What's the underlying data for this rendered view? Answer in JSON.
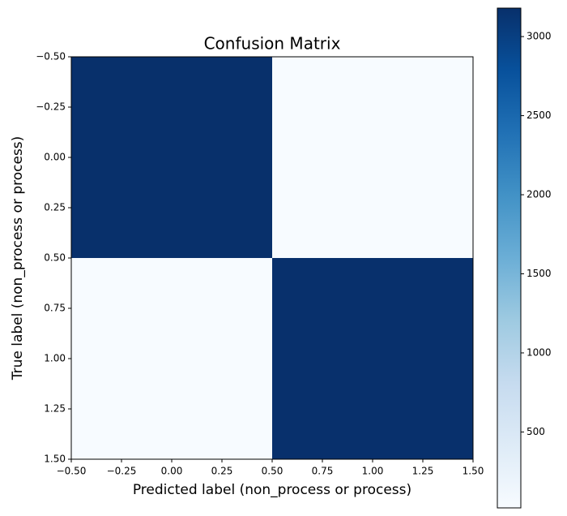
{
  "chart_data": {
    "type": "heatmap",
    "title": "Confusion Matrix",
    "x_label": "Predicted label (non_process or process)",
    "y_label": "True label (non_process or process)",
    "z": [
      [
        3180,
        20
      ],
      [
        25,
        3175
      ]
    ],
    "colormap": "Blues",
    "xlim": [
      -0.5,
      1.5
    ],
    "xticks": [
      {
        "value": -0.5,
        "label": "−0.50"
      },
      {
        "value": -0.25,
        "label": "−0.25"
      },
      {
        "value": 0,
        "label": "0.00"
      },
      {
        "value": 0.25,
        "label": "0.25"
      },
      {
        "value": 0.5,
        "label": "0.50"
      },
      {
        "value": 0.75,
        "label": "0.75"
      },
      {
        "value": 1,
        "label": "1.00"
      },
      {
        "value": 1.25,
        "label": "1.25"
      },
      {
        "value": 1.5,
        "label": "1.50"
      }
    ],
    "ylim": [
      1.5,
      -0.5
    ],
    "yticks": [
      {
        "value": -0.5,
        "label": "−0.50"
      },
      {
        "value": -0.25,
        "label": "−0.25"
      },
      {
        "value": 0,
        "label": "0.00"
      },
      {
        "value": 0.25,
        "label": "0.25"
      },
      {
        "value": 0.5,
        "label": "0.50"
      },
      {
        "value": 0.75,
        "label": "0.75"
      },
      {
        "value": 1,
        "label": "1.00"
      },
      {
        "value": 1.25,
        "label": "1.25"
      },
      {
        "value": 1.5,
        "label": "1.50"
      }
    ],
    "colorbar_lim": [
      20,
      3180
    ],
    "colorbar_ticks": [
      500,
      1000,
      1500,
      2000,
      2500,
      3000
    ]
  }
}
